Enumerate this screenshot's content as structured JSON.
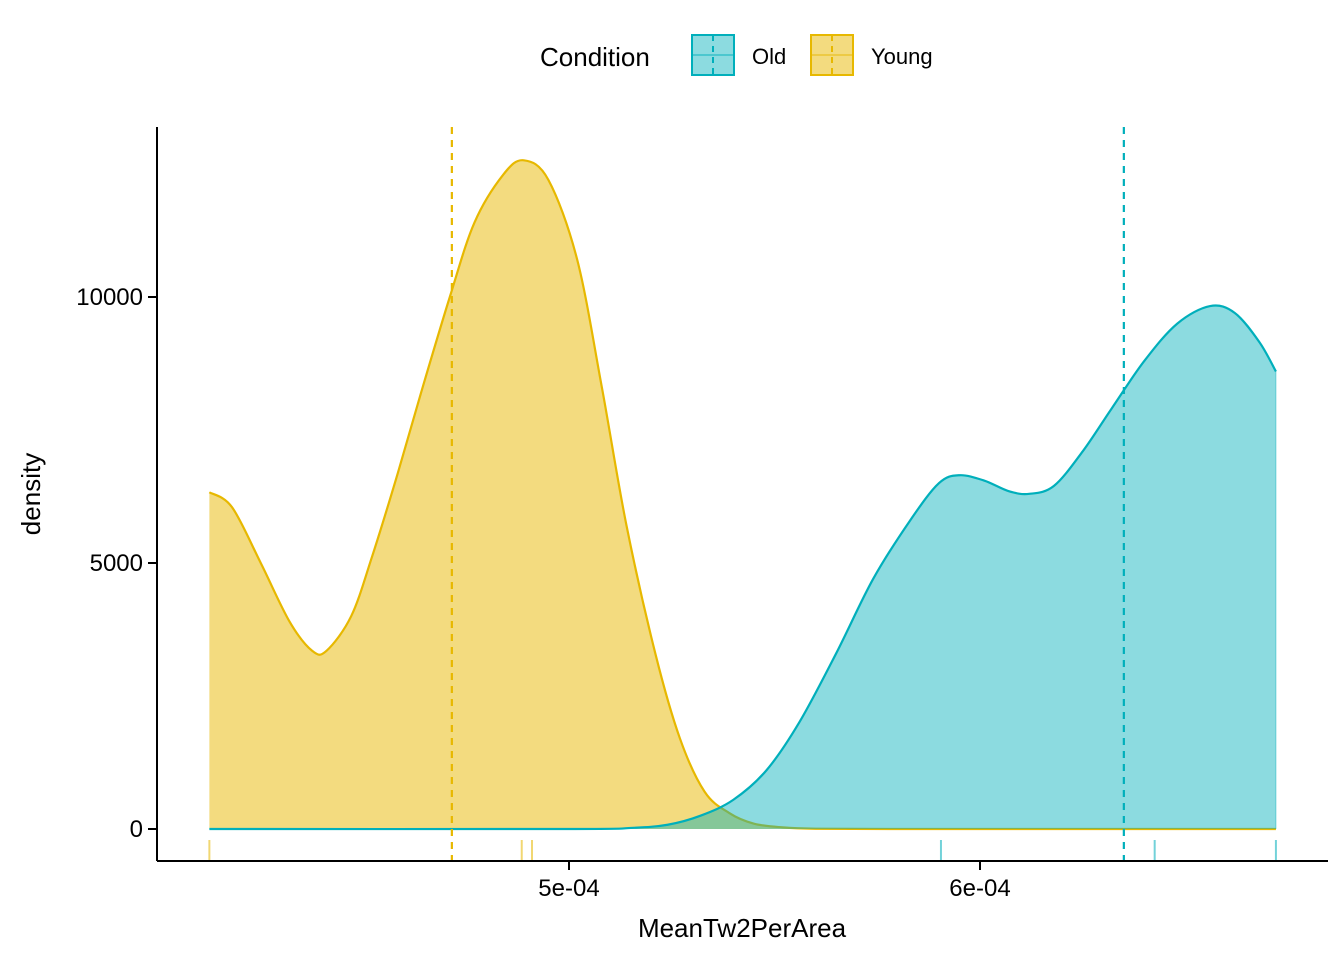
{
  "chart_data": {
    "type": "area",
    "xlabel": "MeanTw2PerArea",
    "ylabel": "density",
    "xlim": [
      0.00041,
      0.000673
    ],
    "ylim": [
      -600,
      12700
    ],
    "x_ticks": [
      0.0005,
      0.0006
    ],
    "x_tick_labels": [
      "5e-04",
      "6e-04"
    ],
    "y_ticks": [
      0,
      5000,
      10000
    ],
    "y_tick_labels": [
      "0",
      "5000",
      "10000"
    ],
    "legend": {
      "title": "Condition",
      "position": "top",
      "entries": [
        "Old",
        "Young"
      ]
    },
    "grid": false,
    "series": [
      {
        "name": "Young",
        "color": "#E7B800",
        "fill": "rgba(231,184,0,0.5)",
        "mean": 0.0004715,
        "rug": [
          0.0004125,
          0.0004885,
          0.000491
        ],
        "points": [
          [
            0.0004125,
            6330
          ],
          [
            0.000418,
            6050
          ],
          [
            0.000425,
            5000
          ],
          [
            0.000432,
            3900
          ],
          [
            0.0004375,
            3350
          ],
          [
            0.000441,
            3350
          ],
          [
            0.000447,
            4000
          ],
          [
            0.000452,
            5100
          ],
          [
            0.000458,
            6600
          ],
          [
            0.000464,
            8200
          ],
          [
            0.000471,
            10000
          ],
          [
            0.000477,
            11400
          ],
          [
            0.000484,
            12300
          ],
          [
            0.000489,
            12570
          ],
          [
            0.000495,
            12200
          ],
          [
            0.000502,
            10700
          ],
          [
            0.000508,
            8300
          ],
          [
            0.000514,
            5700
          ],
          [
            0.000521,
            3300
          ],
          [
            0.000527,
            1700
          ],
          [
            0.000533,
            700
          ],
          [
            0.000539,
            300
          ],
          [
            0.000545,
            100
          ],
          [
            0.000552,
            30
          ],
          [
            0.00056,
            5
          ],
          [
            0.00058,
            0
          ],
          [
            0.00062,
            0
          ],
          [
            0.000672,
            0
          ]
        ]
      },
      {
        "name": "Old",
        "color": "#00AFBB",
        "fill": "rgba(0,175,187,0.45)",
        "mean": 0.000635,
        "rug": [
          0.0005905,
          0.0006425,
          0.000672
        ],
        "points": [
          [
            0.0004125,
            0
          ],
          [
            0.0005,
            0
          ],
          [
            0.000515,
            20
          ],
          [
            0.000524,
            80
          ],
          [
            0.000532,
            250
          ],
          [
            0.00054,
            550
          ],
          [
            0.000548,
            1100
          ],
          [
            0.000556,
            2000
          ],
          [
            0.000565,
            3300
          ],
          [
            0.000574,
            4700
          ],
          [
            0.000583,
            5800
          ],
          [
            0.00059,
            6500
          ],
          [
            0.000595,
            6650
          ],
          [
            0.000601,
            6550
          ],
          [
            0.000607,
            6350
          ],
          [
            0.000612,
            6300
          ],
          [
            0.000618,
            6450
          ],
          [
            0.000625,
            7100
          ],
          [
            0.000632,
            7900
          ],
          [
            0.00064,
            8800
          ],
          [
            0.000648,
            9500
          ],
          [
            0.000656,
            9830
          ],
          [
            0.000662,
            9700
          ],
          [
            0.000668,
            9150
          ],
          [
            0.000672,
            8600
          ]
        ]
      }
    ]
  }
}
